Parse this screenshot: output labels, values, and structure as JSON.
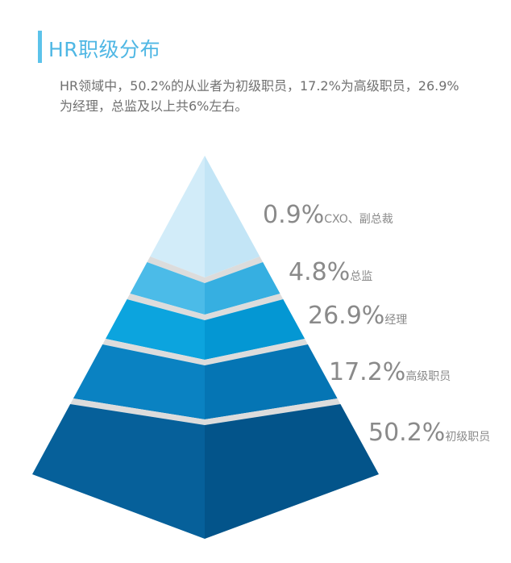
{
  "header": {
    "title": "HR职级分布",
    "description": "HR领域中，50.2%的从业者为初级职员，17.2%为高级职员，26.9%为经理，总监及以上共6%左右。"
  },
  "colors": {
    "accent": "#5cc3ea",
    "separator": "#dcdcdc",
    "text": "#8a8a8a"
  },
  "chart_data": {
    "type": "pyramid",
    "title": "HR职级分布",
    "tiers": [
      {
        "label": "CXO、副总裁",
        "value": 0.9,
        "value_label": "0.9%",
        "color_left": "#d2ecf9",
        "color_right": "#c3e5f6"
      },
      {
        "label": "总监",
        "value": 4.8,
        "value_label": "4.8%",
        "color_left": "#4bbbe8",
        "color_right": "#36afe1"
      },
      {
        "label": "经理",
        "value": 26.9,
        "value_label": "26.9%",
        "color_left": "#0ca4de",
        "color_right": "#0497d3"
      },
      {
        "label": "高级职员",
        "value": 17.2,
        "value_label": "17.2%",
        "color_left": "#0a82c2",
        "color_right": "#0575b4"
      },
      {
        "label": "初级职员",
        "value": 50.2,
        "value_label": "50.2%",
        "color_left": "#06609a",
        "color_right": "#03548a"
      }
    ]
  }
}
